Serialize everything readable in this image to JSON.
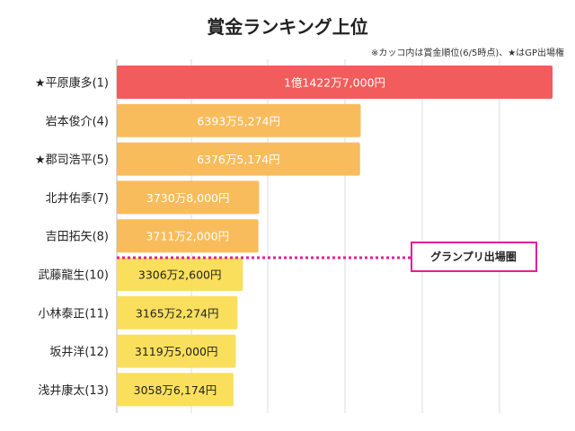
{
  "title": "賞金ランキング上位",
  "note": "※カッコ内は賞金順位(6/5時点)、★はGP出場権",
  "cutoff_label": "グランプリ出場圏",
  "chart_data": {
    "type": "bar",
    "orientation": "horizontal",
    "title": "賞金ランキング上位",
    "categories": [
      "★平原康多(1)",
      "岩本俊介(4)",
      "★郡司浩平(5)",
      "北井佑季(7)",
      "吉田拓矢(8)",
      "武藤龍生(10)",
      "小林泰正(11)",
      "坂井洋(12)",
      "浅井康太(13)"
    ],
    "values": [
      114227000,
      63935274,
      63765174,
      37308000,
      37112000,
      33062600,
      31652274,
      31195000,
      30586174
    ],
    "value_labels": [
      "1億1422万7,000円",
      "6393万5,274円",
      "6376万5,174円",
      "3730万8,000円",
      "3711万2,000円",
      "3306万2,600円",
      "3165万2,274円",
      "3119万5,000円",
      "3058万6,174円"
    ],
    "colors": [
      "#f25c5c",
      "#f9bc5c",
      "#f9bc5c",
      "#f9bc5c",
      "#f9bc5c",
      "#f9df5c",
      "#f9df5c",
      "#f9df5c",
      "#f9df5c"
    ],
    "cutoff_color": "#e61e96",
    "cutoff_after_index": 4,
    "xlim": [
      0,
      114227000
    ],
    "grid": true
  }
}
